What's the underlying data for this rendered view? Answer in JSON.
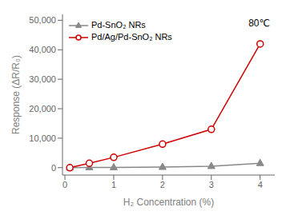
{
  "chart_data": {
    "type": "line",
    "x": [
      0.1,
      0.5,
      1,
      2,
      3,
      4
    ],
    "series": [
      {
        "name": "Pd-SnO₂ NRs",
        "color": "#888888",
        "marker": "triangle",
        "values": [
          0,
          100,
          100,
          200,
          500,
          1500
        ]
      },
      {
        "name": "Pd/Ag/Pd-SnO₂ NRs",
        "color": "#cc0000",
        "marker": "circle",
        "values": [
          0,
          1500,
          3500,
          8000,
          13000,
          42000
        ]
      }
    ],
    "xlabel": "H₂ Concentration (%)",
    "ylabel": "Response (ΔR/R₀)",
    "annotations": [
      "80℃"
    ],
    "xlim": [
      -0.05,
      4.3
    ],
    "ylim": [
      -2500,
      52000
    ],
    "xticks": [
      0,
      1,
      2,
      3,
      4
    ],
    "yticks": [
      0,
      {
        "value": 10000,
        "label": "10,000"
      },
      {
        "value": 20000,
        "label": "20,000"
      },
      {
        "value": 30000,
        "label": "30,000"
      },
      {
        "value": 40000,
        "label": "40,000"
      },
      {
        "value": 50000,
        "label": "50,000"
      }
    ],
    "grid": false,
    "legend": "upper left"
  }
}
